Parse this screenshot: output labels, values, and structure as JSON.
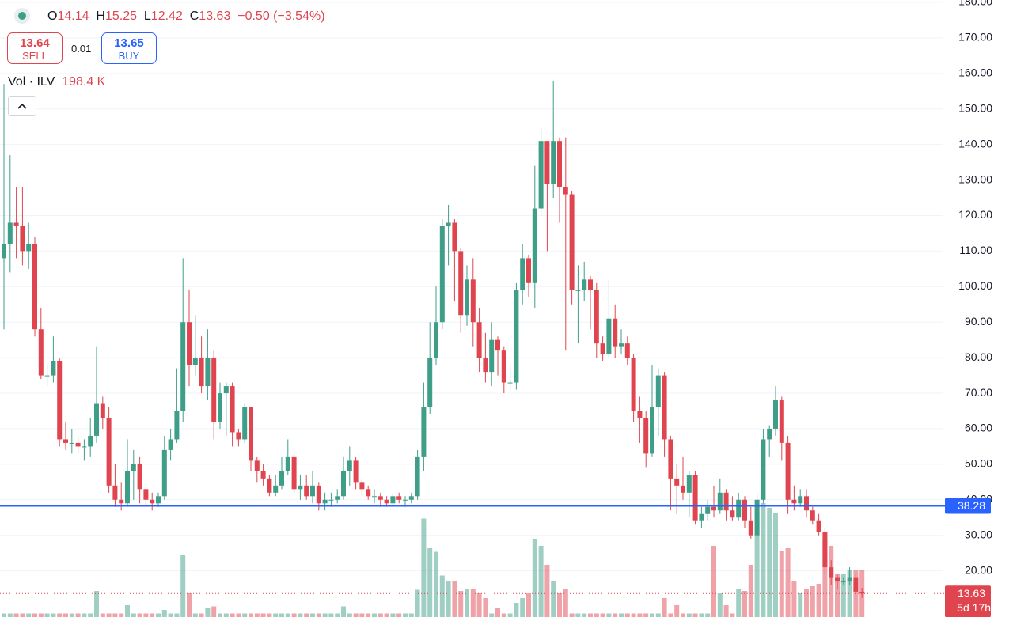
{
  "chart_data": {
    "type": "candlestick",
    "legend": {
      "labels": [
        "O",
        "H",
        "L",
        "C"
      ],
      "values": [
        14.14,
        15.25,
        12.42,
        13.63
      ],
      "change": "−0.50 (−3.54%)"
    },
    "sell": {
      "price": 13.64,
      "label": "SELL"
    },
    "spread": 0.01,
    "buy": {
      "price": 13.65,
      "label": "BUY"
    },
    "volume_legend": {
      "title": "Vol · ILV",
      "value": "198.4 K"
    },
    "up_color": "#3f9e88",
    "down_color": "#e0454f",
    "open": [
      108,
      112,
      118,
      117,
      110,
      112,
      88,
      75,
      75,
      79,
      57,
      56,
      56,
      55,
      55,
      58,
      67,
      63,
      44,
      40,
      39,
      48,
      50,
      43,
      40,
      39,
      41,
      54,
      57,
      65,
      90,
      78,
      80,
      72,
      80,
      62,
      70,
      72,
      59,
      57,
      66,
      51,
      48,
      46,
      42,
      44,
      48,
      52,
      43,
      44,
      41,
      44,
      39,
      40,
      40,
      41,
      48,
      51,
      45,
      43,
      41,
      41,
      40,
      39,
      41,
      40,
      40,
      41,
      52,
      66,
      80,
      90,
      117,
      118,
      110,
      92,
      102,
      90,
      80,
      76,
      85,
      82,
      73,
      73,
      99,
      108,
      101,
      122,
      141,
      129,
      141,
      128,
      126,
      99,
      99,
      102,
      99,
      84,
      81,
      91,
      83,
      84,
      80,
      65,
      63,
      53,
      66,
      75,
      57,
      46,
      44,
      42,
      47,
      34,
      36,
      38,
      37,
      42,
      37,
      35,
      40,
      34,
      30,
      40,
      57,
      60,
      68,
      56,
      40,
      39,
      41,
      37,
      34,
      31,
      21,
      18,
      17,
      17,
      18,
      14.14
    ],
    "high": [
      157,
      137,
      128,
      128,
      118,
      114,
      94,
      78,
      86,
      80,
      62,
      60,
      58,
      57,
      63,
      83,
      69,
      66,
      50,
      45,
      57,
      54,
      52,
      44,
      42,
      42,
      58,
      60,
      77,
      108,
      99,
      92,
      86,
      88,
      82,
      73,
      73,
      73,
      60,
      67,
      66,
      52,
      50,
      47,
      47,
      52,
      57,
      53,
      47,
      47,
      48,
      45,
      42,
      42,
      43,
      52,
      55,
      52,
      46,
      44,
      43,
      42,
      41,
      42,
      42,
      41,
      42,
      54,
      73,
      90,
      100,
      119,
      123,
      119,
      111,
      106,
      108,
      94,
      87,
      90,
      86,
      83,
      78,
      101,
      112,
      109,
      134,
      145,
      141,
      158,
      142,
      142,
      127,
      106,
      107,
      103,
      101,
      86,
      102,
      95,
      88,
      86,
      81,
      69,
      65,
      78,
      77,
      76,
      58,
      50,
      52,
      48,
      48,
      38,
      40,
      44,
      46,
      43,
      41,
      42,
      41,
      38,
      42,
      60,
      61,
      72,
      69,
      58,
      44,
      43,
      43,
      38,
      36,
      32,
      23,
      19,
      18,
      21,
      19,
      15.25
    ],
    "low": [
      88,
      104,
      108,
      106,
      105,
      86,
      74,
      72,
      73,
      55,
      54,
      53,
      53,
      51,
      52,
      56,
      60,
      42,
      38,
      37,
      38,
      40,
      39,
      38,
      37,
      38,
      40,
      51,
      56,
      62,
      72,
      75,
      70,
      68,
      57,
      60,
      58,
      55,
      55,
      56,
      48,
      45,
      44,
      41,
      41,
      43,
      47,
      42,
      40,
      40,
      39,
      37,
      37,
      38,
      39,
      40,
      44,
      43,
      41,
      40,
      39,
      38,
      38,
      38,
      39,
      38,
      39,
      40,
      48,
      64,
      78,
      88,
      106,
      96,
      87,
      89,
      83,
      76,
      73,
      72,
      75,
      70,
      71,
      71,
      95,
      97,
      94,
      120,
      110,
      125,
      118,
      82,
      95,
      84,
      96,
      88,
      80,
      79,
      80,
      80,
      81,
      78,
      62,
      56,
      49,
      52,
      58,
      52,
      37,
      36,
      40,
      35,
      33,
      32,
      34,
      35,
      36,
      34,
      34,
      34,
      32,
      29,
      29,
      39,
      52,
      58,
      51,
      36,
      37,
      38,
      35,
      33,
      30,
      19,
      16,
      15,
      16,
      16,
      13,
      12.42
    ],
    "close": [
      112,
      118,
      117,
      110,
      112,
      88,
      75,
      75,
      79,
      57,
      56,
      56,
      55,
      55,
      58,
      67,
      63,
      44,
      40,
      39,
      48,
      50,
      43,
      40,
      39,
      41,
      54,
      57,
      65,
      90,
      78,
      80,
      72,
      80,
      62,
      70,
      72,
      59,
      57,
      66,
      51,
      48,
      46,
      42,
      44,
      48,
      52,
      43,
      44,
      41,
      44,
      39,
      40,
      40,
      41,
      48,
      51,
      45,
      43,
      41,
      41,
      40,
      39,
      41,
      40,
      40,
      41,
      52,
      66,
      80,
      90,
      117,
      118,
      110,
      92,
      102,
      90,
      80,
      76,
      85,
      82,
      73,
      73,
      99,
      108,
      101,
      122,
      141,
      129,
      141,
      128,
      126,
      99,
      99,
      102,
      99,
      84,
      81,
      91,
      83,
      84,
      80,
      65,
      63,
      53,
      66,
      75,
      57,
      46,
      44,
      42,
      47,
      34,
      36,
      38,
      37,
      42,
      37,
      35,
      40,
      34,
      30,
      40,
      57,
      60,
      68,
      56,
      40,
      39,
      41,
      37,
      34,
      31,
      21,
      18,
      17,
      17,
      18,
      14.14,
      13.63
    ],
    "volume": [
      15,
      15,
      15,
      15,
      15,
      15,
      15,
      15,
      15,
      15,
      15,
      15,
      15,
      15,
      15,
      110,
      15,
      15,
      15,
      15,
      50,
      15,
      15,
      15,
      15,
      15,
      30,
      15,
      15,
      260,
      100,
      15,
      15,
      40,
      45,
      15,
      15,
      15,
      15,
      15,
      15,
      15,
      15,
      15,
      15,
      15,
      15,
      15,
      15,
      15,
      15,
      15,
      15,
      15,
      15,
      45,
      15,
      15,
      15,
      15,
      15,
      15,
      15,
      15,
      15,
      15,
      15,
      115,
      415,
      290,
      275,
      175,
      150,
      150,
      110,
      120,
      120,
      100,
      80,
      15,
      40,
      15,
      15,
      60,
      80,
      100,
      330,
      300,
      220,
      150,
      100,
      120,
      15,
      15,
      15,
      15,
      15,
      15,
      15,
      15,
      15,
      15,
      15,
      15,
      15,
      15,
      15,
      80,
      15,
      50,
      15,
      15,
      15,
      15,
      15,
      300,
      100,
      50,
      15,
      120,
      110,
      220,
      440,
      480,
      460,
      440,
      280,
      290,
      150,
      100,
      120,
      130,
      140,
      330,
      300,
      180,
      180,
      200,
      200,
      198.4
    ],
    "vlim": [
      0,
      2600
    ],
    "ylim": [
      7.0,
      180.67
    ],
    "yticks": [
      {
        "value": 20,
        "label": "20.00"
      },
      {
        "value": 30,
        "label": "30.00"
      },
      {
        "value": 40,
        "label": "40.00"
      },
      {
        "value": 50,
        "label": "50.00"
      },
      {
        "value": 60,
        "label": "60.00"
      },
      {
        "value": 70,
        "label": "70.00"
      },
      {
        "value": 80,
        "label": "80.00"
      },
      {
        "value": 90,
        "label": "90.00"
      },
      {
        "value": 100,
        "label": "100.00"
      },
      {
        "value": 110,
        "label": "110.00"
      },
      {
        "value": 120,
        "label": "120.00"
      },
      {
        "value": 130,
        "label": "130.00"
      },
      {
        "value": 140,
        "label": "140.00"
      },
      {
        "value": 150,
        "label": "150.00"
      },
      {
        "value": 160,
        "label": "160.00"
      },
      {
        "value": 170,
        "label": "170.00"
      },
      {
        "value": 180,
        "label": "180.00"
      }
    ],
    "grid": true,
    "hline": {
      "value": 38.28,
      "color": "#2962ff"
    },
    "last_price": {
      "value": 13.63,
      "countdown": "5d 17h"
    }
  }
}
